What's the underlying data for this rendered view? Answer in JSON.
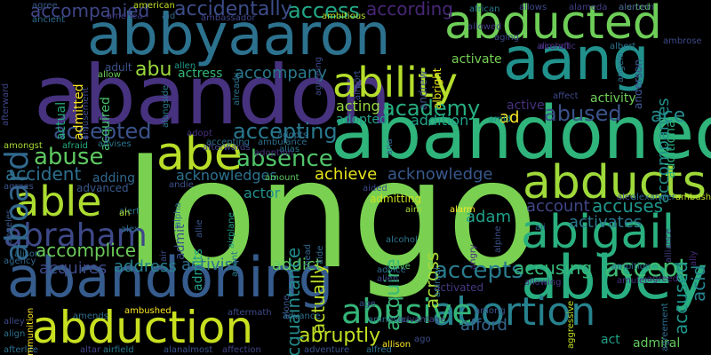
{
  "words": [
    "longo",
    "abandoned",
    "abandon",
    "abandoning",
    "abbyaaron",
    "aang",
    "abducted",
    "abducts",
    "abigail",
    "abbey",
    "abduction",
    "ability",
    "able",
    "abe",
    "abraham",
    "aboard",
    "abortion",
    "abusive",
    "absence",
    "abuse",
    "accept",
    "accepts",
    "accepted",
    "accepting",
    "academy",
    "abused",
    "abruptly",
    "accident",
    "accomplice",
    "accompanied",
    "accidentally",
    "access",
    "according",
    "abu",
    "ace",
    "accuses",
    "accused",
    "acquire",
    "actually",
    "adam",
    "across",
    "accusing",
    "account",
    "activates",
    "accompanies",
    "acid",
    "activist",
    "address",
    "addict",
    "acquires",
    "activated",
    "afford",
    "act",
    "admiral",
    "actor",
    "achieve",
    "acknowledge",
    "acknowledges",
    "acquaintance",
    "adopted",
    "addition",
    "acting",
    "ad",
    "active",
    "activity",
    "activate",
    "adult",
    "actual",
    "admitted",
    "acquired",
    "actress",
    "accompany",
    "adding",
    "advanced",
    "admitting",
    "admit",
    "admits",
    "african",
    "alerted",
    "agree",
    "american",
    "america",
    "aid",
    "ambitious",
    "ambassador",
    "alameda",
    "accepting",
    "ally",
    "allowed",
    "allow",
    "additional",
    "adopt",
    "advises",
    "afraid",
    "afterwards",
    "amongst",
    "agrees",
    "angeles",
    "agency",
    "alison",
    "allen",
    "already",
    "aircraft",
    "albert",
    "alcoholic",
    "aging",
    "andrew",
    "albright",
    "advice",
    "alien",
    "alive",
    "animal",
    "ambition",
    "amulet",
    "agreed",
    "allowing",
    "amid",
    "ana",
    "alec",
    "alexander",
    "ambush",
    "alarm",
    "aim",
    "alcohol",
    "alliance",
    "ambulance",
    "alias",
    "amount",
    "aided",
    "alpha",
    "airplane",
    "allie",
    "andie",
    "alert",
    "ah",
    "alex",
    "air",
    "agent",
    "ahead",
    "aide",
    "angry",
    "alone",
    "afterlife",
    "altar",
    "airfield",
    "alanalmost",
    "affection",
    "adventure",
    "alfred",
    "ago",
    "aggressive",
    "agreement",
    "allison",
    "amnesia",
    "advantage",
    "age",
    "aftermath",
    "advance",
    "ambushed",
    "amends",
    "ammunition",
    "alley",
    "align",
    "affect",
    "anderson",
    "angelo",
    "among",
    "alamein",
    "allows",
    "anderson",
    "ancient",
    "alongside",
    "amusement",
    "afterward",
    "adoption",
    "agreeing",
    "airport",
    "ambrose",
    "adopts",
    "alpine",
    "ali"
  ],
  "colors": {
    "background": "#000000"
  }
}
